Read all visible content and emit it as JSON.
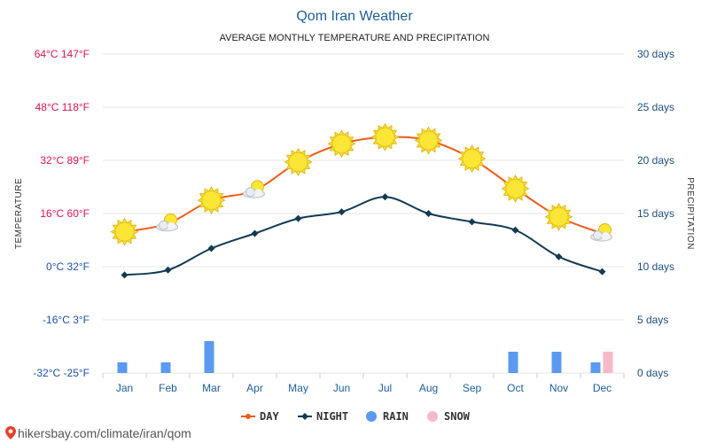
{
  "chart_data": {
    "type": "line",
    "title": "Qom Iran Weather",
    "subtitle": "AVERAGE MONTHLY TEMPERATURE AND PRECIPITATION",
    "ylabel_left": "TEMPERATURE",
    "ylabel_right": "PRECIPITATION",
    "categories": [
      "Jan",
      "Feb",
      "Mar",
      "Apr",
      "May",
      "Jun",
      "Jul",
      "Aug",
      "Sep",
      "Oct",
      "Nov",
      "Dec"
    ],
    "temp_ylim_c": [
      -32,
      64
    ],
    "temp_ticks": [
      {
        "value": 64,
        "label": "64°C 147°F",
        "color": "#e0144c"
      },
      {
        "value": 48,
        "label": "48°C 118°F",
        "color": "#e0144c"
      },
      {
        "value": 32,
        "label": "32°C 89°F",
        "color": "#e0144c"
      },
      {
        "value": 16,
        "label": "16°C 60°F",
        "color": "#e0144c"
      },
      {
        "value": 0,
        "label": "0°C 32°F",
        "color": "#1b4fb0"
      },
      {
        "value": -16,
        "label": "-16°C 3°F",
        "color": "#1b4fb0"
      },
      {
        "value": -32,
        "label": "-32°C -25°F",
        "color": "#1b4fb0"
      }
    ],
    "precip_ylim_days": [
      0,
      30
    ],
    "precip_ticks": [
      {
        "value": 30,
        "label": "30 days"
      },
      {
        "value": 25,
        "label": "25 days"
      },
      {
        "value": 20,
        "label": "20 days"
      },
      {
        "value": 15,
        "label": "15 days"
      },
      {
        "value": 10,
        "label": "10 days"
      },
      {
        "value": 5,
        "label": "5 days"
      },
      {
        "value": 0,
        "label": "0 days"
      }
    ],
    "series": [
      {
        "name": "DAY",
        "kind": "line",
        "color": "#f05a1a",
        "unit": "°C",
        "values": [
          10.5,
          13,
          20,
          23,
          31.5,
          37,
          39,
          38,
          32.5,
          23.5,
          15,
          10
        ]
      },
      {
        "name": "NIGHT",
        "kind": "line",
        "color": "#123a52",
        "unit": "°C",
        "values": [
          -2.5,
          -1,
          5.5,
          10,
          14.5,
          16.5,
          21,
          16,
          13.5,
          11,
          3,
          -1.5
        ]
      },
      {
        "name": "RAIN",
        "kind": "bar",
        "color": "#5b9af2",
        "unit": "days",
        "values": [
          1,
          1,
          3,
          0,
          0,
          0,
          0,
          0,
          0,
          2,
          2,
          1
        ]
      },
      {
        "name": "SNOW",
        "kind": "bar",
        "color": "#f7b9c8",
        "unit": "days",
        "values": [
          0,
          0,
          0,
          0,
          0,
          0,
          0,
          0,
          0,
          0,
          0,
          2
        ]
      }
    ],
    "weather_icons": [
      "sun-icon",
      "partly-cloudy-icon",
      "sun-icon",
      "partly-cloudy-icon",
      "sun-icon",
      "sun-icon",
      "sun-icon",
      "sun-icon",
      "sun-icon",
      "sun-icon",
      "sun-icon",
      "partly-cloudy-icon"
    ],
    "legend": [
      {
        "name": "DAY",
        "marker": "line-dot",
        "color": "#f05a1a"
      },
      {
        "name": "NIGHT",
        "marker": "line-diamond",
        "color": "#123a52"
      },
      {
        "name": "RAIN",
        "marker": "circle",
        "color": "#5b9af2"
      },
      {
        "name": "SNOW",
        "marker": "circle",
        "color": "#f7b9c8"
      }
    ],
    "legend_placement": "bottom",
    "grid": true
  },
  "credit": {
    "text": "hikersbay.com/climate/iran/qom",
    "icon": "location-pin-icon",
    "icon_color": "#e8402a"
  }
}
